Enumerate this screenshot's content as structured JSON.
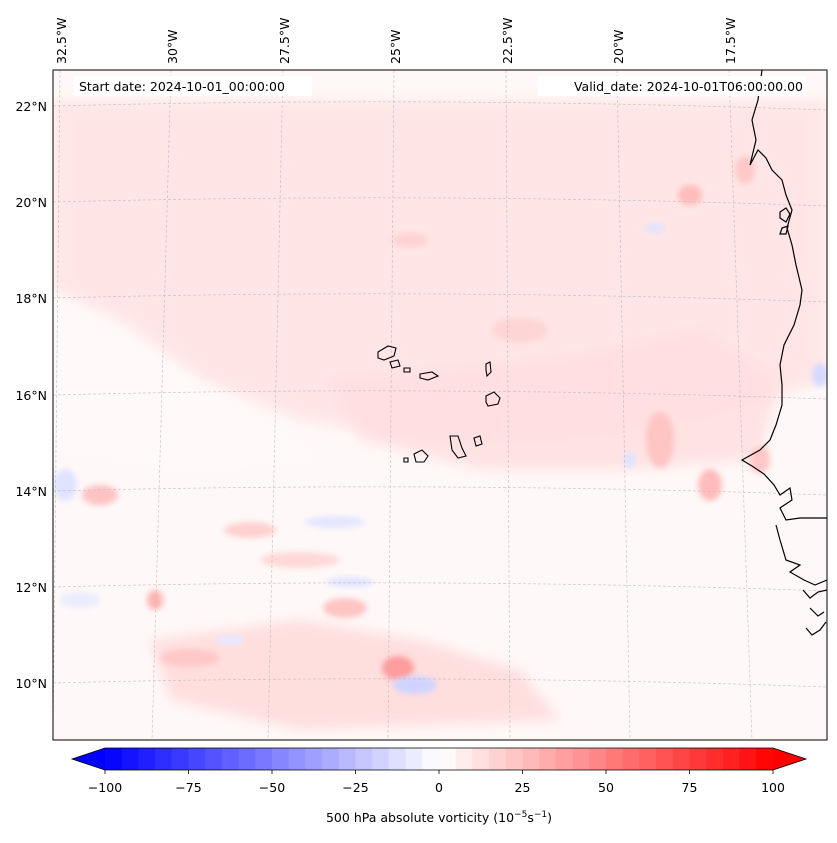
{
  "map": {
    "start_label": "Start date: 2024-10-01_00:00:00",
    "valid_label": "Valid_date: 2024-10-01T06:00:00.00",
    "lon_labels": [
      "32.5°W",
      "30°W",
      "27.5°W",
      "25°W",
      "22.5°W",
      "20°W",
      "17.5°W"
    ],
    "lat_labels": [
      "22°N",
      "20°N",
      "18°N",
      "16°N",
      "14°N",
      "12°N",
      "10°N"
    ]
  },
  "colorbar": {
    "label_text": "500 hPa absolute vorticity (10",
    "label_exp1": "−5",
    "label_mid": "s",
    "label_exp2": "−1",
    "label_close": ")",
    "ticks": [
      "−100",
      "−75",
      "−50",
      "−25",
      "0",
      "25",
      "50",
      "75",
      "100"
    ],
    "tick_values": [
      -100,
      -75,
      -50,
      -25,
      0,
      25,
      50,
      75,
      100
    ],
    "range": [
      -100,
      100
    ],
    "colors": {
      "negative": "#0000ff",
      "zero": "#ffffff",
      "positive": "#ff0000"
    }
  },
  "colors": {
    "coastline": "#000000",
    "gridline": "#bbbbbb",
    "frame": "#000000"
  }
}
